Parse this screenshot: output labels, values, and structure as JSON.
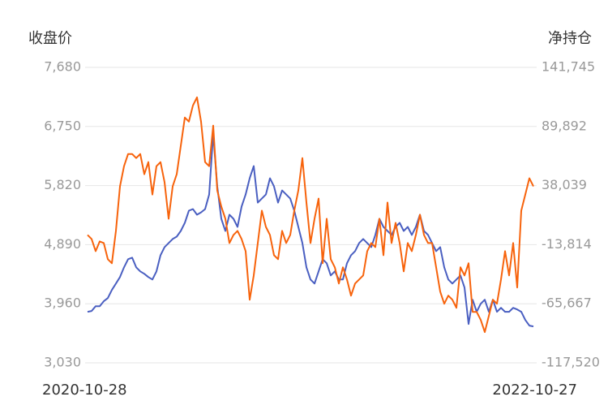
{
  "chart_data": {
    "type": "line",
    "ylabel": "收盘价",
    "y2label": "净持仓",
    "categories": [
      "2020-10-28",
      null,
      null,
      null,
      null,
      null,
      null,
      null,
      null,
      null,
      null,
      null,
      null,
      null,
      null,
      null,
      null,
      null,
      null,
      null,
      null,
      null,
      null,
      null,
      null,
      null,
      null,
      null,
      null,
      null,
      null,
      null,
      null,
      null,
      null,
      null,
      null,
      null,
      null,
      null,
      null,
      null,
      null,
      null,
      null,
      null,
      null,
      null,
      null,
      null,
      null,
      null,
      null,
      null,
      null,
      null,
      null,
      null,
      null,
      null,
      null,
      null,
      null,
      null,
      null,
      null,
      null,
      null,
      null,
      null,
      null,
      null,
      null,
      null,
      null,
      null,
      null,
      null,
      null,
      null,
      null,
      null,
      null,
      null,
      null,
      null,
      null,
      null,
      null,
      null,
      null,
      null,
      null,
      null,
      null,
      null,
      null,
      null,
      null,
      null,
      null,
      null,
      null,
      null,
      null,
      null,
      null,
      null,
      null,
      null,
      "2022-10-27"
    ],
    "ylim": [
      3030,
      7680
    ],
    "yticks": [
      {
        "value": 7680,
        "label": "7,680"
      },
      {
        "value": 6750,
        "label": "6,750"
      },
      {
        "value": 5820,
        "label": "5,820"
      },
      {
        "value": 4890,
        "label": "4,890"
      },
      {
        "value": 3960,
        "label": "3,960"
      },
      {
        "value": 3030,
        "label": "3,030"
      }
    ],
    "y2lim": [
      -117520,
      141745
    ],
    "y2ticks": [
      {
        "value": 141745,
        "label": "141,745"
      },
      {
        "value": 89892,
        "label": "89,892"
      },
      {
        "value": 38039,
        "label": "38,039"
      },
      {
        "value": -13814,
        "label": "-13,814"
      },
      {
        "value": -65667,
        "label": "-65,667"
      },
      {
        "value": -117520,
        "label": "-117,520"
      }
    ],
    "grid": true,
    "series": [
      {
        "color": "#4a5fc1",
        "axis": "y",
        "values": [
          3833,
          3846,
          3922,
          3922,
          3999,
          4050,
          4177,
          4278,
          4380,
          4533,
          4661,
          4686,
          4533,
          4470,
          4431,
          4380,
          4342,
          4470,
          4724,
          4852,
          4915,
          4979,
          5017,
          5106,
          5234,
          5425,
          5450,
          5361,
          5399,
          5450,
          5680,
          6635,
          5807,
          5298,
          5106,
          5361,
          5298,
          5170,
          5489,
          5680,
          5935,
          6126,
          5552,
          5616,
          5680,
          5935,
          5807,
          5552,
          5743,
          5680,
          5616,
          5425,
          5170,
          4915,
          4533,
          4342,
          4278,
          4470,
          4661,
          4597,
          4406,
          4470,
          4342,
          4342,
          4597,
          4724,
          4788,
          4915,
          4979,
          4915,
          4852,
          5043,
          5298,
          5170,
          5106,
          5043,
          5170,
          5234,
          5106,
          5170,
          5043,
          5170,
          5361,
          5106,
          5043,
          4915,
          4788,
          4852,
          4533,
          4342,
          4278,
          4342,
          4406,
          4215,
          3642,
          4024,
          3833,
          3960,
          4024,
          3833,
          4024,
          3833,
          3896,
          3833,
          3833,
          3896,
          3871,
          3833,
          3705,
          3616,
          3603
        ]
      },
      {
        "color": "#f7630c",
        "axis": "y2",
        "values": [
          -5287,
          -8839,
          -19493,
          -10970,
          -12390,
          -26596,
          -30148,
          -1736,
          37331,
          55088,
          65743,
          65743,
          62191,
          65743,
          47985,
          58640,
          30228,
          55088,
          58640,
          40882,
          8919,
          37331,
          47985,
          72846,
          97706,
          94155,
          108361,
          115464,
          94155,
          58640,
          55088,
          90603,
          33779,
          19573,
          8919,
          -12390,
          -5287,
          -1736,
          -8839,
          -19493,
          -62111,
          -40802,
          -12390,
          16022,
          1816,
          -5287,
          -23045,
          -26596,
          -1736,
          -12390,
          -5287,
          16022,
          33779,
          62191,
          23125,
          -12390,
          8919,
          26676,
          -30148,
          8919,
          -26596,
          -33699,
          -47905,
          -33699,
          -44354,
          -58560,
          -47905,
          -44354,
          -40802,
          -19493,
          -12390,
          -15942,
          8919,
          -23045,
          23125,
          -12390,
          5367,
          -12390,
          -37251,
          -12390,
          -19493,
          -5287,
          12470,
          -5287,
          -12390,
          -12390,
          -33699,
          -55008,
          -65663,
          -58560,
          -62111,
          -69214,
          -33699,
          -40802,
          -30148,
          -72766,
          -72766,
          -79869,
          -90523,
          -76317,
          -62111,
          -65663,
          -44354,
          -19493,
          -40802,
          -12390,
          -51457,
          16022,
          30228,
          44434,
          37331
        ]
      }
    ]
  }
}
